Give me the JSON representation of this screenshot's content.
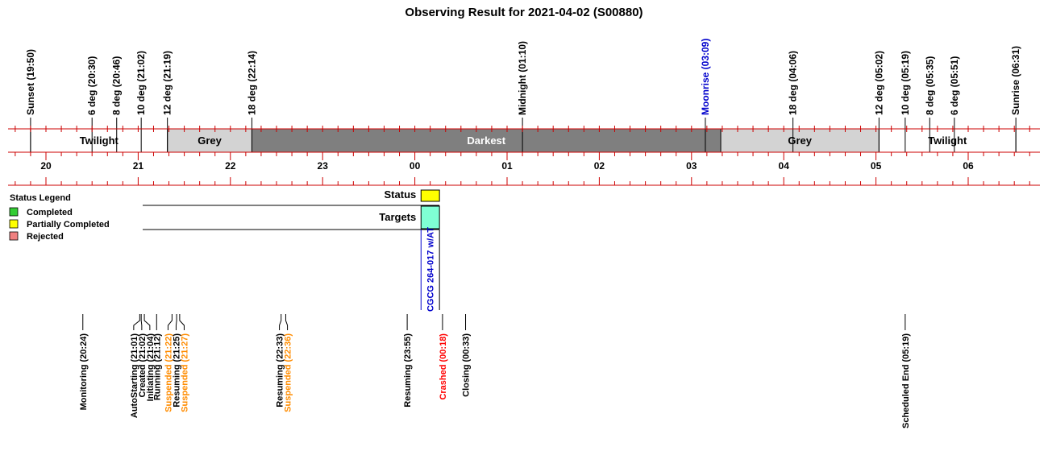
{
  "chart_data": {
    "type": "timeline",
    "title": "Observing Result for 2021-04-02 (S00880)",
    "axis": {
      "hour_labels": [
        "20",
        "21",
        "22",
        "23",
        "00",
        "01",
        "02",
        "03",
        "04",
        "05",
        "06"
      ]
    },
    "sky_events": [
      {
        "label": "Sunset (19:50)",
        "t": 19.833,
        "color": "#000000"
      },
      {
        "label": "6 deg (20:30)",
        "t": 20.5,
        "color": "#000000"
      },
      {
        "label": "8 deg (20:46)",
        "t": 20.767,
        "color": "#000000"
      },
      {
        "label": "10 deg (21:02)",
        "t": 21.033,
        "color": "#000000"
      },
      {
        "label": "12 deg (21:19)",
        "t": 21.317,
        "color": "#000000"
      },
      {
        "label": "18 deg (22:14)",
        "t": 22.233,
        "color": "#000000"
      },
      {
        "label": "Midnight (01:10)",
        "t": 25.167,
        "color": "#000000"
      },
      {
        "label": "Moonrise (03:09)",
        "t": 27.15,
        "color": "#0000cc"
      },
      {
        "label": "18 deg (04:06)",
        "t": 28.1,
        "color": "#000000"
      },
      {
        "label": "12 deg (05:02)",
        "t": 29.033,
        "color": "#000000"
      },
      {
        "label": "10 deg (05:19)",
        "t": 29.317,
        "color": "#000000"
      },
      {
        "label": "8 deg (05:35)",
        "t": 29.583,
        "color": "#000000"
      },
      {
        "label": "6 deg (05:51)",
        "t": 29.85,
        "color": "#000000"
      },
      {
        "label": "Sunrise (06:31)",
        "t": 30.517,
        "color": "#000000"
      }
    ],
    "bands": [
      {
        "label": "Twilight",
        "start": 19.833,
        "end": 21.317,
        "color": "#ffffff",
        "text_color": "#000000"
      },
      {
        "label": "Grey",
        "start": 21.317,
        "end": 22.233,
        "color": "#d3d3d3",
        "text_color": "#000000"
      },
      {
        "label": "Darkest",
        "start": 22.233,
        "end": 27.317,
        "color": "#7f7f7f",
        "text_color": "#ffffff"
      },
      {
        "label": "Grey",
        "start": 27.317,
        "end": 29.033,
        "color": "#d3d3d3",
        "text_color": "#000000"
      },
      {
        "label": "Twilight",
        "start": 29.033,
        "end": 30.517,
        "color": "#ffffff",
        "text_color": "#000000"
      }
    ],
    "status_row": {
      "label": "Status",
      "start": 24.067,
      "end": 24.267,
      "color": "#ffff00"
    },
    "targets_row": {
      "label": "Targets",
      "start": 24.067,
      "end": 24.267,
      "color": "#7fffd4"
    },
    "target": {
      "name": "CGCG 264-017 w/AT",
      "color": "#0000cc"
    },
    "legend": {
      "title": "Status Legend",
      "items": [
        {
          "label": "Completed",
          "color": "#33cc33"
        },
        {
          "label": "Partially Completed",
          "color": "#ffff00"
        },
        {
          "label": "Rejected",
          "color": "#f08080"
        }
      ]
    },
    "log_events": [
      {
        "label": "Monitoring (20:24)",
        "t": 20.4,
        "color": "#000000"
      },
      {
        "label": "AutoStarting (21:01)",
        "t": 21.017,
        "color": "#000000"
      },
      {
        "label": "Created (21:02)",
        "t": 21.033,
        "color": "#000000"
      },
      {
        "label": "Initiating (21:04)",
        "t": 21.067,
        "color": "#000000"
      },
      {
        "label": "Running (21:12)",
        "t": 21.2,
        "color": "#000000"
      },
      {
        "label": "Suspended (21:22)",
        "t": 21.367,
        "color": "#ff8c00"
      },
      {
        "label": "Resuming (21:25)",
        "t": 21.417,
        "color": "#000000"
      },
      {
        "label": "Suspended (21:27)",
        "t": 21.45,
        "color": "#ff8c00"
      },
      {
        "label": "Resuming (22:33)",
        "t": 22.55,
        "color": "#000000"
      },
      {
        "label": "Suspended (22:36)",
        "t": 22.6,
        "color": "#ff8c00"
      },
      {
        "label": "Resuming (23:55)",
        "t": 23.917,
        "color": "#000000"
      },
      {
        "label": "Crashed (00:18)",
        "t": 24.3,
        "color": "#ff0000"
      },
      {
        "label": "Closing (00:33)",
        "t": 24.55,
        "color": "#000000"
      },
      {
        "label": "Scheduled End (05:19)",
        "t": 29.317,
        "color": "#000000"
      }
    ]
  }
}
